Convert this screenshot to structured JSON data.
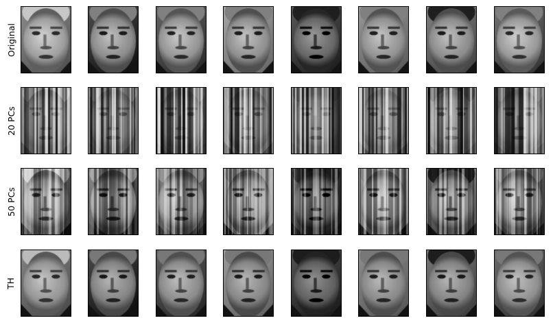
{
  "figure": {
    "rows": [
      {
        "label": "Original",
        "style": "clean"
      },
      {
        "label": "20 PCs",
        "style": "heavy-stripes"
      },
      {
        "label": "50 PCs",
        "style": "light-stripes"
      },
      {
        "label": "TH",
        "style": "clean"
      }
    ],
    "columns": [
      {
        "subject": "face-1",
        "tone": 0.62,
        "bg": 0.45,
        "hair": "white-thin"
      },
      {
        "subject": "face-2",
        "tone": 0.55,
        "bg": 0.2,
        "hair": "gray"
      },
      {
        "subject": "face-3",
        "tone": 0.58,
        "bg": 0.3,
        "hair": "gray"
      },
      {
        "subject": "face-4",
        "tone": 0.56,
        "bg": 0.55,
        "hair": "gray"
      },
      {
        "subject": "face-5",
        "tone": 0.4,
        "bg": 0.25,
        "hair": "dark"
      },
      {
        "subject": "face-6",
        "tone": 0.57,
        "bg": 0.5,
        "hair": "gray"
      },
      {
        "subject": "face-7",
        "tone": 0.55,
        "bg": 0.4,
        "hair": "dark"
      },
      {
        "subject": "face-8",
        "tone": 0.6,
        "bg": 0.35,
        "hair": "gray"
      }
    ],
    "colormap": "grayscale"
  }
}
